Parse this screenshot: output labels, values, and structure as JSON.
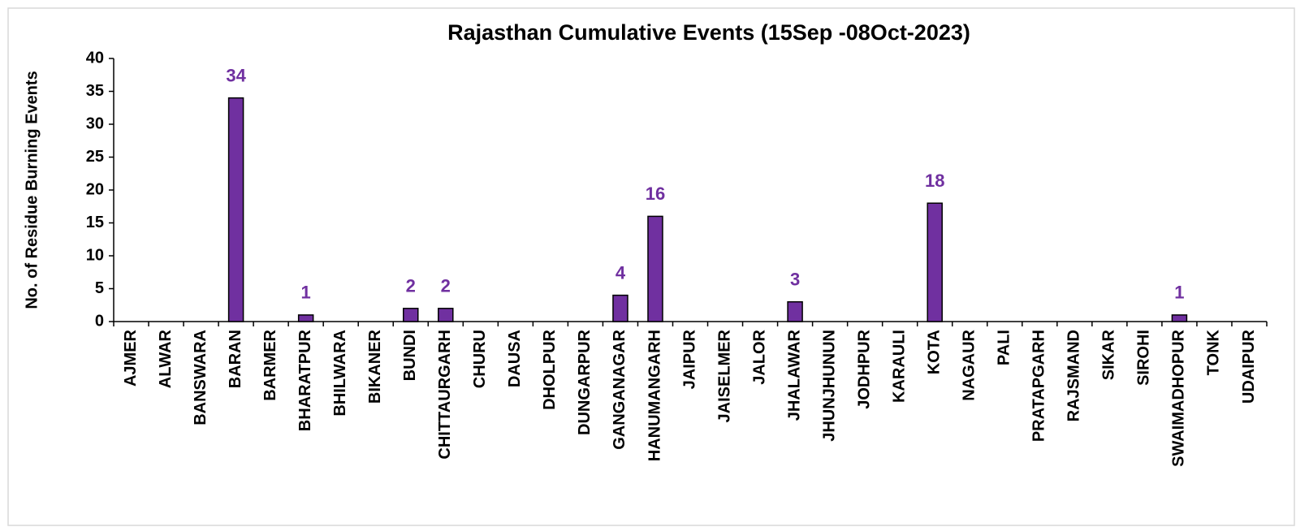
{
  "chart_data": {
    "type": "bar",
    "title": "Rajasthan Cumulative Events (15Sep -08Oct-2023)",
    "y_label": "No. of Residue Burning Events",
    "categories": [
      "AJMER",
      "ALWAR",
      "BANSWARA",
      "BARAN",
      "BARMER",
      "BHARATPUR",
      "BHILWARA",
      "BIKANER",
      "BUNDI",
      "CHITTAURGARH",
      "CHURU",
      "DAUSA",
      "DHOLPUR",
      "DUNGARPUR",
      "GANGANAGAR",
      "HANUMANGARH",
      "JAIPUR",
      "JAISELMER",
      "JALOR",
      "JHALAWAR",
      "JHUNJHUNUN",
      "JODHPUR",
      "KARAULI",
      "KOTA",
      "NAGAUR",
      "PALI",
      "PRATAPGARH",
      "RAJSMAND",
      "SIKAR",
      "SIROHI",
      "SWAIMADHOPUR",
      "TONK",
      "UDAIPUR"
    ],
    "values": [
      0,
      0,
      0,
      34,
      0,
      1,
      0,
      0,
      2,
      2,
      0,
      0,
      0,
      0,
      4,
      16,
      0,
      0,
      0,
      3,
      0,
      0,
      0,
      18,
      0,
      0,
      0,
      0,
      0,
      0,
      1,
      0,
      0
    ],
    "color": "#7030a0",
    "label_color": "#7030a0",
    "ylim": [
      0,
      40
    ],
    "yticks": [
      0,
      5,
      10,
      15,
      20,
      25,
      30,
      35,
      40
    ],
    "grid": false
  }
}
